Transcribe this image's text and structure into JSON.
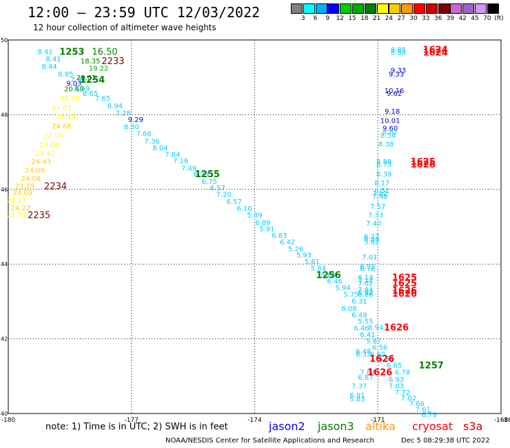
{
  "header": {
    "title": "12:00 — 23:59 UTC 12/03/2022",
    "subtitle": "12 hour collection of altimeter wave heights"
  },
  "colorbar": {
    "unit": "(ft)",
    "bins": [
      {
        "color": "#808080",
        "label": "3"
      },
      {
        "color": "#00ffff",
        "label": "6"
      },
      {
        "color": "#00b0ff",
        "label": "9"
      },
      {
        "color": "#0000ff",
        "label": "12"
      },
      {
        "color": "#00cc00",
        "label": "15"
      },
      {
        "color": "#00aa00",
        "label": "18"
      },
      {
        "color": "#008000",
        "label": "21"
      },
      {
        "color": "#ffff00",
        "label": "24"
      },
      {
        "color": "#ffcc00",
        "label": "27"
      },
      {
        "color": "#ff9900",
        "label": "30"
      },
      {
        "color": "#ff0000",
        "label": "33"
      },
      {
        "color": "#cc0000",
        "label": "36"
      },
      {
        "color": "#800000",
        "label": "39"
      },
      {
        "color": "#cc66cc",
        "label": "42"
      },
      {
        "color": "#9966cc",
        "label": "45"
      },
      {
        "color": "#cc99ff",
        "label": "70"
      },
      {
        "color": "#000000",
        "label": ""
      }
    ]
  },
  "map": {
    "xlim": [
      -180,
      -168
    ],
    "ylim": [
      40,
      50
    ],
    "x_ticks": [
      {
        "v": -180,
        "label": "-180"
      },
      {
        "v": -177,
        "label": "-177"
      },
      {
        "v": -174,
        "label": "-174"
      },
      {
        "v": -171,
        "label": "-171"
      },
      {
        "v": -168,
        "label": "-168"
      }
    ],
    "x_tick_right_label": "-16",
    "y_ticks": [
      {
        "v": 50,
        "label": "50"
      },
      {
        "v": 48,
        "label": "48"
      },
      {
        "v": 46,
        "label": "46"
      },
      {
        "v": 44,
        "label": "44"
      },
      {
        "v": 42,
        "label": "42"
      },
      {
        "v": 40,
        "label": "40"
      }
    ]
  },
  "chart_data": {
    "type": "scatter",
    "xlim": [
      -180,
      -168
    ],
    "ylim": [
      40,
      50
    ],
    "grid": true,
    "points": [
      {
        "lon": -179.1,
        "lat": 49.7,
        "text": "8.41",
        "color": "#00ccff"
      },
      {
        "lon": -178.9,
        "lat": 49.5,
        "text": "8.41",
        "color": "#00ccff"
      },
      {
        "lon": -179.0,
        "lat": 49.3,
        "text": "8.44",
        "color": "#00ccff"
      },
      {
        "lon": -178.6,
        "lat": 49.1,
        "text": "8.85",
        "color": "#00ccff"
      },
      {
        "lon": -178.3,
        "lat": 48.95,
        "text": "7.96",
        "color": "#00ccff"
      },
      {
        "lon": -178.0,
        "lat": 49.45,
        "text": "18.35",
        "color": "#008000"
      },
      {
        "lon": -177.8,
        "lat": 49.25,
        "text": "19.22",
        "color": "#00aa00"
      },
      {
        "lon": -178.1,
        "lat": 49.0,
        "text": "20.02",
        "color": "#008000"
      },
      {
        "lon": -178.4,
        "lat": 48.85,
        "text": "9.03",
        "color": "#0000cc"
      },
      {
        "lon": -178.15,
        "lat": 48.85,
        "text": "22",
        "color": "#ffff00"
      },
      {
        "lon": -178.4,
        "lat": 48.7,
        "text": "20.69",
        "color": "#008000"
      },
      {
        "lon": -178.2,
        "lat": 48.72,
        "text": "8.59",
        "color": "#00ccff"
      },
      {
        "lon": -178.0,
        "lat": 48.58,
        "text": "8.65",
        "color": "#00ccff"
      },
      {
        "lon": -178.5,
        "lat": 48.45,
        "text": "22.59",
        "color": "#ffff00"
      },
      {
        "lon": -177.7,
        "lat": 48.45,
        "text": "7.65",
        "color": "#00ccff"
      },
      {
        "lon": -177.4,
        "lat": 48.25,
        "text": "8.94",
        "color": "#00ccff"
      },
      {
        "lon": -178.7,
        "lat": 48.2,
        "text": "23.81",
        "color": "#ffff00"
      },
      {
        "lon": -177.2,
        "lat": 48.05,
        "text": "7.28",
        "color": "#00ccff"
      },
      {
        "lon": -178.6,
        "lat": 47.95,
        "text": "23.45",
        "color": "#ffff00"
      },
      {
        "lon": -176.9,
        "lat": 47.88,
        "text": "9.29",
        "color": "#0000cc"
      },
      {
        "lon": -178.7,
        "lat": 47.7,
        "text": "24.68",
        "color": "#ffcc00"
      },
      {
        "lon": -177.0,
        "lat": 47.68,
        "text": "8.30",
        "color": "#00ccff"
      },
      {
        "lon": -176.7,
        "lat": 47.5,
        "text": "7.66",
        "color": "#00ccff"
      },
      {
        "lon": -178.9,
        "lat": 47.45,
        "text": "22.03",
        "color": "#ffff00"
      },
      {
        "lon": -176.5,
        "lat": 47.3,
        "text": "7.36",
        "color": "#00ccff"
      },
      {
        "lon": -179.0,
        "lat": 47.2,
        "text": "23.08",
        "color": "#ffff00"
      },
      {
        "lon": -176.3,
        "lat": 47.12,
        "text": "8.04",
        "color": "#00ccff"
      },
      {
        "lon": -179.1,
        "lat": 46.97,
        "text": "23.42",
        "color": "#ffff00"
      },
      {
        "lon": -176.0,
        "lat": 46.95,
        "text": "7.84",
        "color": "#00ccff"
      },
      {
        "lon": -179.2,
        "lat": 46.75,
        "text": "24.43",
        "color": "#ffcc00"
      },
      {
        "lon": -175.8,
        "lat": 46.78,
        "text": "7.16",
        "color": "#00ccff"
      },
      {
        "lon": -179.35,
        "lat": 46.52,
        "text": "24.09",
        "color": "#ffcc00"
      },
      {
        "lon": -175.6,
        "lat": 46.58,
        "text": "7.49",
        "color": "#00ccff"
      },
      {
        "lon": -175.3,
        "lat": 46.42,
        "text": "6.99",
        "color": "#00ccff"
      },
      {
        "lon": -179.45,
        "lat": 46.3,
        "text": "24.08",
        "color": "#ffcc00"
      },
      {
        "lon": -175.1,
        "lat": 46.22,
        "text": "6.75",
        "color": "#00ccff"
      },
      {
        "lon": -179.6,
        "lat": 46.1,
        "text": "23.75",
        "color": "#ffcc00"
      },
      {
        "lon": -174.9,
        "lat": 46.05,
        "text": "6.57",
        "color": "#00ccff"
      },
      {
        "lon": -179.65,
        "lat": 45.92,
        "text": "24.09",
        "color": "#ffcc00"
      },
      {
        "lon": -174.75,
        "lat": 45.88,
        "text": "7.20",
        "color": "#00ccff"
      },
      {
        "lon": -179.8,
        "lat": 45.72,
        "text": "23.17",
        "color": "#ffff00"
      },
      {
        "lon": -174.5,
        "lat": 45.68,
        "text": "6.57",
        "color": "#00ccff"
      },
      {
        "lon": -174.25,
        "lat": 45.5,
        "text": "6.10",
        "color": "#00ccff"
      },
      {
        "lon": -179.7,
        "lat": 45.52,
        "text": "24.22",
        "color": "#ffcc00"
      },
      {
        "lon": -174.0,
        "lat": 45.32,
        "text": "5.89",
        "color": "#00ccff"
      },
      {
        "lon": -179.8,
        "lat": 45.32,
        "text": "21.33",
        "color": "#ffff00"
      },
      {
        "lon": -173.8,
        "lat": 45.12,
        "text": "6.89",
        "color": "#00ccff"
      },
      {
        "lon": -173.7,
        "lat": 44.95,
        "text": "5.91",
        "color": "#00ccff"
      },
      {
        "lon": -173.4,
        "lat": 44.78,
        "text": "6.83",
        "color": "#00ccff"
      },
      {
        "lon": -173.2,
        "lat": 44.6,
        "text": "6.42",
        "color": "#00ccff"
      },
      {
        "lon": -173.0,
        "lat": 44.42,
        "text": "5.26",
        "color": "#00ccff"
      },
      {
        "lon": -172.8,
        "lat": 44.25,
        "text": "5.93",
        "color": "#00ccff"
      },
      {
        "lon": -172.6,
        "lat": 44.08,
        "text": "5.61",
        "color": "#00ccff"
      },
      {
        "lon": -172.45,
        "lat": 43.9,
        "text": "5.84",
        "color": "#00ccff"
      },
      {
        "lon": -172.2,
        "lat": 43.72,
        "text": "5.89",
        "color": "#00ccff"
      },
      {
        "lon": -172.05,
        "lat": 43.55,
        "text": "6.46",
        "color": "#00ccff"
      },
      {
        "lon": -171.85,
        "lat": 43.38,
        "text": "5.94",
        "color": "#00ccff"
      },
      {
        "lon": -171.65,
        "lat": 43.2,
        "text": "5.75",
        "color": "#00ccff"
      },
      {
        "lon": -171.45,
        "lat": 43.02,
        "text": "6.31",
        "color": "#00ccff"
      },
      {
        "lon": -171.7,
        "lat": 42.82,
        "text": "6.08",
        "color": "#00ccff"
      },
      {
        "lon": -171.45,
        "lat": 42.65,
        "text": "6.49",
        "color": "#00ccff"
      },
      {
        "lon": -171.3,
        "lat": 42.48,
        "text": "5.55",
        "color": "#00ccff"
      },
      {
        "lon": -171.4,
        "lat": 42.3,
        "text": "6.46",
        "color": "#00ccff"
      },
      {
        "lon": -171.05,
        "lat": 42.32,
        "text": "8.94",
        "color": "#00ccff"
      },
      {
        "lon": -171.25,
        "lat": 42.12,
        "text": "6.41",
        "color": "#00ccff"
      },
      {
        "lon": -171.1,
        "lat": 41.95,
        "text": "5.87",
        "color": "#00ccff"
      },
      {
        "lon": -170.95,
        "lat": 41.78,
        "text": "6.56",
        "color": "#00ccff"
      },
      {
        "lon": -171.0,
        "lat": 41.6,
        "text": "6.50",
        "color": "#00ccff"
      },
      {
        "lon": -170.8,
        "lat": 41.48,
        "text": "6.53",
        "color": "#00ccff"
      },
      {
        "lon": -171.25,
        "lat": 41.12,
        "text": "7.84",
        "color": "#00ccff"
      },
      {
        "lon": -170.6,
        "lat": 41.3,
        "text": "6.65",
        "color": "#00ccff"
      },
      {
        "lon": -171.3,
        "lat": 40.98,
        "text": "6.87",
        "color": "#00ccff"
      },
      {
        "lon": -170.4,
        "lat": 41.12,
        "text": "6.78",
        "color": "#00ccff"
      },
      {
        "lon": -170.55,
        "lat": 40.92,
        "text": "6.93",
        "color": "#00ccff"
      },
      {
        "lon": -171.45,
        "lat": 40.75,
        "text": "7.37",
        "color": "#00ccff"
      },
      {
        "lon": -170.55,
        "lat": 40.75,
        "text": "7.03",
        "color": "#00ccff"
      },
      {
        "lon": -170.4,
        "lat": 40.57,
        "text": "7.72",
        "color": "#00ccff"
      },
      {
        "lon": -170.25,
        "lat": 40.42,
        "text": "7.02",
        "color": "#00ccff"
      },
      {
        "lon": -170.05,
        "lat": 40.28,
        "text": "7.66",
        "color": "#00ccff"
      },
      {
        "lon": -169.9,
        "lat": 40.12,
        "text": "7.61",
        "color": "#00ccff"
      },
      {
        "lon": -169.75,
        "lat": 39.98,
        "text": "6.79",
        "color": "#00ccff"
      },
      {
        "lon": -171.5,
        "lat": 40.5,
        "text": "6.91",
        "color": "#00ccff"
      },
      {
        "lon": -171.5,
        "lat": 40.4,
        "text": "5.83",
        "color": "#00ccff"
      },
      {
        "lon": -170.5,
        "lat": 49.75,
        "text": "8.85",
        "color": "#00ccff"
      },
      {
        "lon": -170.5,
        "lat": 49.68,
        "text": "8.88",
        "color": "#00ccff"
      },
      {
        "lon": -170.5,
        "lat": 49.2,
        "text": "9.33",
        "color": "#0000cc"
      },
      {
        "lon": -170.55,
        "lat": 49.1,
        "text": "9.33",
        "color": "#0000cc"
      },
      {
        "lon": -170.6,
        "lat": 48.65,
        "text": "10.16",
        "color": "#0000cc"
      },
      {
        "lon": -170.6,
        "lat": 48.58,
        "text": "9.62",
        "color": "#0000cc"
      },
      {
        "lon": -170.65,
        "lat": 48.1,
        "text": "9.18",
        "color": "#0000cc"
      },
      {
        "lon": -170.7,
        "lat": 47.85,
        "text": "10.01",
        "color": "#0000cc"
      },
      {
        "lon": -170.7,
        "lat": 47.65,
        "text": "9.60",
        "color": "#0000cc"
      },
      {
        "lon": -170.7,
        "lat": 47.55,
        "text": "8.87",
        "color": "#00ccff"
      },
      {
        "lon": -170.75,
        "lat": 47.45,
        "text": "8.54",
        "color": "#00ccff"
      },
      {
        "lon": -170.8,
        "lat": 47.22,
        "text": "8.38",
        "color": "#00ccff"
      },
      {
        "lon": -170.85,
        "lat": 46.75,
        "text": "8.88",
        "color": "#00ccff"
      },
      {
        "lon": -170.85,
        "lat": 46.68,
        "text": "8.75",
        "color": "#00ccff"
      },
      {
        "lon": -170.85,
        "lat": 46.42,
        "text": "8.39",
        "color": "#00ccff"
      },
      {
        "lon": -170.9,
        "lat": 46.18,
        "text": "8.17",
        "color": "#00ccff"
      },
      {
        "lon": -170.9,
        "lat": 45.98,
        "text": "8.51",
        "color": "#00ccff"
      },
      {
        "lon": -170.95,
        "lat": 45.9,
        "text": "7.82",
        "color": "#00ccff"
      },
      {
        "lon": -170.95,
        "lat": 45.82,
        "text": "7.98",
        "color": "#00ccff"
      },
      {
        "lon": -171.0,
        "lat": 45.55,
        "text": "7.57",
        "color": "#00ccff"
      },
      {
        "lon": -171.05,
        "lat": 45.32,
        "text": "7.33",
        "color": "#00ccff"
      },
      {
        "lon": -171.1,
        "lat": 45.1,
        "text": "7.40",
        "color": "#00ccff"
      },
      {
        "lon": -171.15,
        "lat": 44.75,
        "text": "6.27",
        "color": "#00ccff"
      },
      {
        "lon": -171.15,
        "lat": 44.68,
        "text": "6.20",
        "color": "#00ccff"
      },
      {
        "lon": -171.15,
        "lat": 44.6,
        "text": "5.82",
        "color": "#00ccff"
      },
      {
        "lon": -171.2,
        "lat": 44.2,
        "text": "7.01",
        "color": "#00ccff"
      },
      {
        "lon": -171.25,
        "lat": 43.95,
        "text": "6.95",
        "color": "#00ccff"
      },
      {
        "lon": -171.25,
        "lat": 43.88,
        "text": "6.76",
        "color": "#00ccff"
      },
      {
        "lon": -171.3,
        "lat": 43.65,
        "text": "6.13",
        "color": "#00ccff"
      },
      {
        "lon": -171.3,
        "lat": 43.58,
        "text": "7.12",
        "color": "#00ccff"
      },
      {
        "lon": -171.3,
        "lat": 43.5,
        "text": "7.02",
        "color": "#00ccff"
      },
      {
        "lon": -171.3,
        "lat": 43.32,
        "text": "7.84",
        "color": "#00ccff"
      },
      {
        "lon": -171.3,
        "lat": 43.25,
        "text": "6.92",
        "color": "#00ccff"
      },
      {
        "lon": -171.3,
        "lat": 43.2,
        "text": "6.88",
        "color": "#00ccff"
      },
      {
        "lon": -171.35,
        "lat": 41.68,
        "text": "6.48",
        "color": "#00ccff"
      },
      {
        "lon": -171.35,
        "lat": 41.6,
        "text": "6.32",
        "color": "#00ccff"
      }
    ],
    "labels": [
      {
        "lon": -178.45,
        "lat": 49.7,
        "text": "1253",
        "color": "#008000",
        "bold": true
      },
      {
        "lon": -177.65,
        "lat": 49.7,
        "text": "16.50",
        "color": "#008000",
        "bold": false
      },
      {
        "lon": -177.45,
        "lat": 49.45,
        "text": "2233",
        "color": "#800000",
        "bold": false
      },
      {
        "lon": -177.95,
        "lat": 48.95,
        "text": "1254",
        "color": "#008000",
        "bold": true
      },
      {
        "lon": -175.15,
        "lat": 46.42,
        "text": "1255",
        "color": "#008000",
        "bold": true
      },
      {
        "lon": -178.85,
        "lat": 46.1,
        "text": "2234",
        "color": "#800000",
        "bold": false
      },
      {
        "lon": -179.25,
        "lat": 45.32,
        "text": "2235",
        "color": "#800000",
        "bold": false
      },
      {
        "lon": -172.2,
        "lat": 43.72,
        "text": "1256",
        "color": "#008000",
        "bold": true
      },
      {
        "lon": -169.7,
        "lat": 41.3,
        "text": "1257",
        "color": "#008000",
        "bold": true
      },
      {
        "lon": -169.6,
        "lat": 49.75,
        "text": "1624",
        "color": "#ff0000",
        "bold": true
      },
      {
        "lon": -169.6,
        "lat": 49.68,
        "text": "1624",
        "color": "#ff0000",
        "bold": true
      },
      {
        "lon": -169.9,
        "lat": 46.75,
        "text": "1625",
        "color": "#ff0000",
        "bold": true
      },
      {
        "lon": -169.9,
        "lat": 46.68,
        "text": "1626",
        "color": "#ff0000",
        "bold": true
      },
      {
        "lon": -170.35,
        "lat": 43.65,
        "text": "1625",
        "color": "#ff0000",
        "bold": true
      },
      {
        "lon": -170.35,
        "lat": 43.5,
        "text": "1625",
        "color": "#ff0000",
        "bold": true
      },
      {
        "lon": -170.35,
        "lat": 43.3,
        "text": "1626",
        "color": "#ff0000",
        "bold": true
      },
      {
        "lon": -170.35,
        "lat": 43.22,
        "text": "1626",
        "color": "#ff0000",
        "bold": true
      },
      {
        "lon": -170.55,
        "lat": 42.32,
        "text": "1626",
        "color": "#ff0000",
        "bold": true
      },
      {
        "lon": -170.9,
        "lat": 41.48,
        "text": "1626",
        "color": "#ff0000",
        "bold": true
      },
      {
        "lon": -170.95,
        "lat": 41.12,
        "text": "1626",
        "color": "#ff0000",
        "bold": true
      }
    ]
  },
  "footer": {
    "note": "note: 1) Time is in UTC; 2) SWH is in feet",
    "legend": [
      {
        "label": "jason2",
        "color": "#0000ff"
      },
      {
        "label": "jason3",
        "color": "#008000"
      },
      {
        "label": "altika",
        "color": "#ff9900"
      },
      {
        "label": "cryosat",
        "color": "#ff0000"
      },
      {
        "label": "s3a",
        "color": "#cc0000"
      }
    ],
    "credit": "NOAA/NESDIS Center for Satellite Applications and Research",
    "timestamp": "Dec  5 08:29:38 UTC 2022"
  }
}
